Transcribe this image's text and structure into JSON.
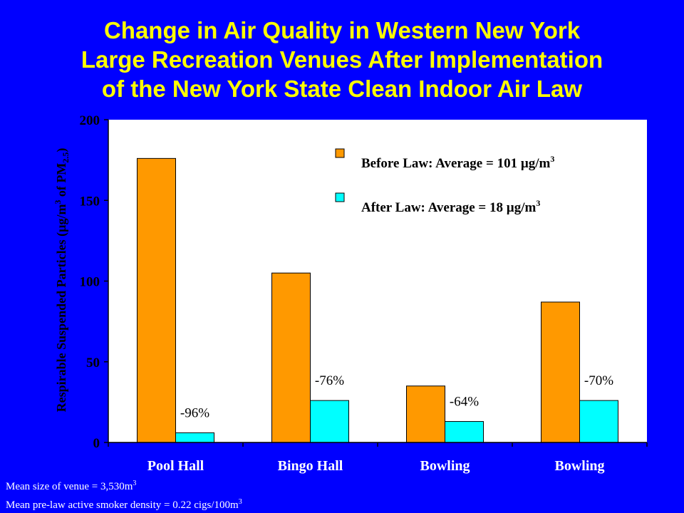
{
  "title_lines": [
    "Change in Air Quality in Western New York",
    "Large Recreation Venues After Implementation",
    "of the New York State Clean Indoor Air Law"
  ],
  "notes": {
    "line1": "Mean size of venue = 3,530m",
    "line1_sup": "3",
    "line2": "Mean pre-law active smoker density = 0.22 cigs/100m",
    "line2_sup": "3"
  },
  "colors": {
    "background": "#0000ff",
    "title": "#ffff00",
    "before": "#ff9900",
    "after": "#00ffff",
    "plot_bg": "#ffffff"
  },
  "chart_data": {
    "type": "bar",
    "categories": [
      "Pool Hall",
      "Bingo Hall",
      "Bowling",
      "Bowling"
    ],
    "series": [
      {
        "name": "Before Law: Average = 101 µg/m",
        "name_sup": "3",
        "values": [
          176,
          105,
          35,
          87
        ]
      },
      {
        "name": "After Law: Average = 18 µg/m",
        "name_sup": "3",
        "values": [
          6,
          26,
          13,
          26
        ]
      }
    ],
    "annotations": [
      "-96%",
      "-76%",
      "-64%",
      "-70%"
    ],
    "ylabel": "Respirable Suspended Particles (µg/m",
    "ylabel_sup": "3",
    "ylabel_tail": " of PM",
    "ylabel_sub": "2.5",
    "ylabel_end": ")",
    "ylim": [
      0,
      200
    ],
    "yticks": [
      0,
      50,
      100,
      150,
      200
    ],
    "grid": false,
    "legend": "top-right"
  }
}
